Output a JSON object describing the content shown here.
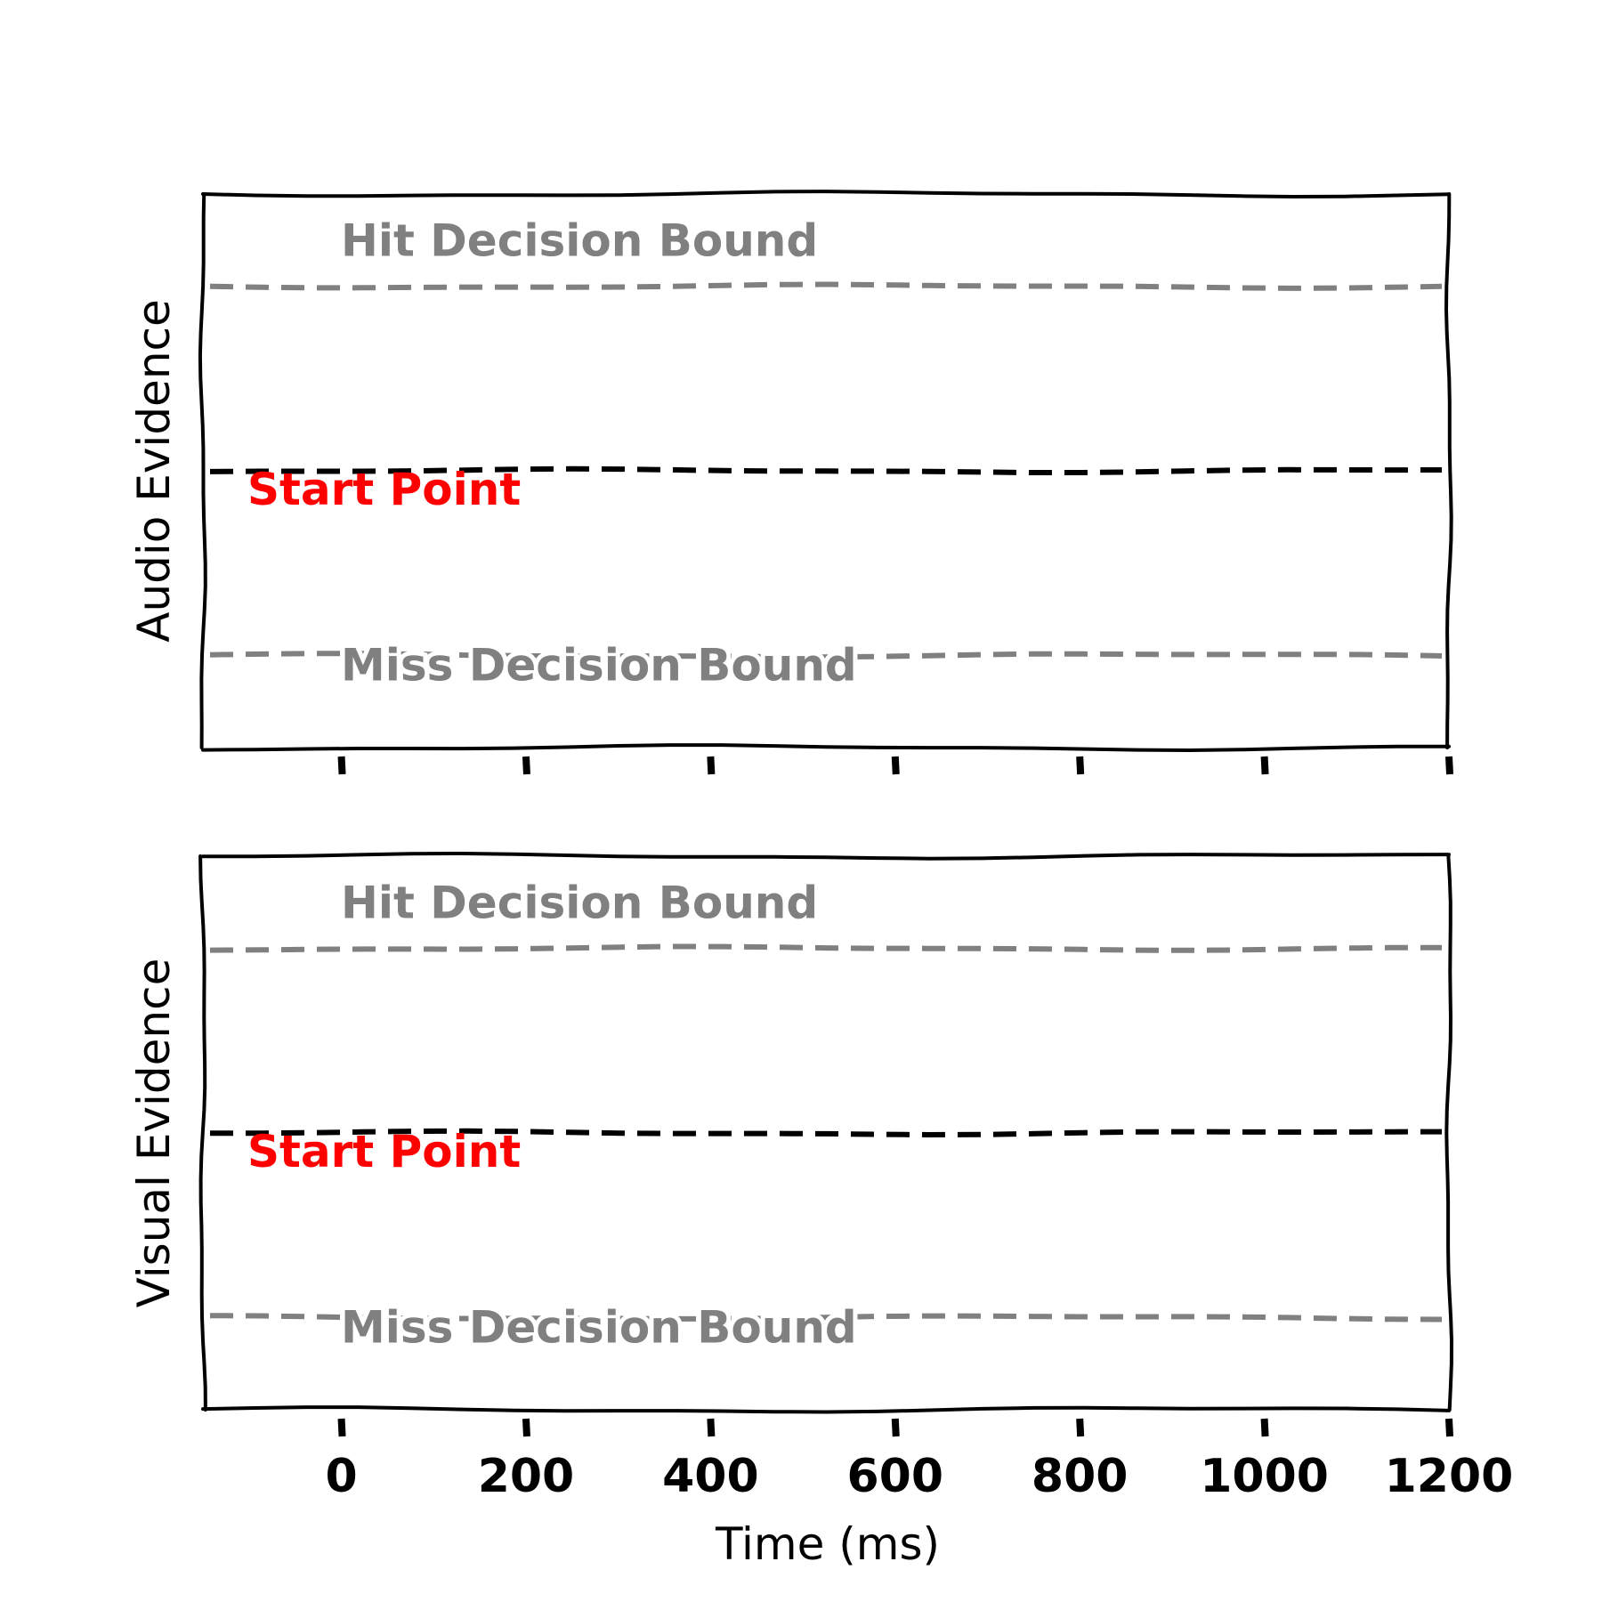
{
  "colors": {
    "hit_bound": "#808080",
    "miss_bound": "#808080",
    "start_line": "#000000",
    "start_label": "#ff0000",
    "frame": "#000000"
  },
  "xlabel": "Time (ms)",
  "chart_data": [
    {
      "type": "line",
      "panel": "top",
      "ylabel": "Audio Evidence",
      "xlim": [
        -150,
        1200
      ],
      "ylim": [
        -1.5,
        1.5
      ],
      "xticks": [
        0,
        200,
        400,
        600,
        800,
        1000,
        1200
      ],
      "tick_labels_shown": false,
      "grid": false,
      "lines": [
        {
          "label": "Hit Decision Bound",
          "y": 1.0,
          "style": "dashed",
          "color": "#808080"
        },
        {
          "label": "Start Point",
          "y": 0.0,
          "style": "dashed",
          "color": "#000000"
        },
        {
          "label": "Miss Decision Bound",
          "y": -1.0,
          "style": "dashed",
          "color": "#808080"
        }
      ],
      "annotations": {
        "hit": "Hit Decision Bound",
        "start": "Start Point",
        "miss": "Miss Decision Bound"
      }
    },
    {
      "type": "line",
      "panel": "bottom",
      "ylabel": "Visual Evidence",
      "xlabel": "Time (ms)",
      "xlim": [
        -150,
        1200
      ],
      "ylim": [
        -1.5,
        1.5
      ],
      "xticks": [
        0,
        200,
        400,
        600,
        800,
        1000,
        1200
      ],
      "tick_labels": [
        "0",
        "200",
        "400",
        "600",
        "800",
        "1000",
        "1200"
      ],
      "tick_labels_shown": true,
      "grid": false,
      "lines": [
        {
          "label": "Hit Decision Bound",
          "y": 1.0,
          "style": "dashed",
          "color": "#808080"
        },
        {
          "label": "Start Point",
          "y": 0.0,
          "style": "dashed",
          "color": "#000000"
        },
        {
          "label": "Miss Decision Bound",
          "y": -1.0,
          "style": "dashed",
          "color": "#808080"
        }
      ],
      "annotations": {
        "hit": "Hit Decision Bound",
        "start": "Start Point",
        "miss": "Miss Decision Bound"
      }
    }
  ]
}
